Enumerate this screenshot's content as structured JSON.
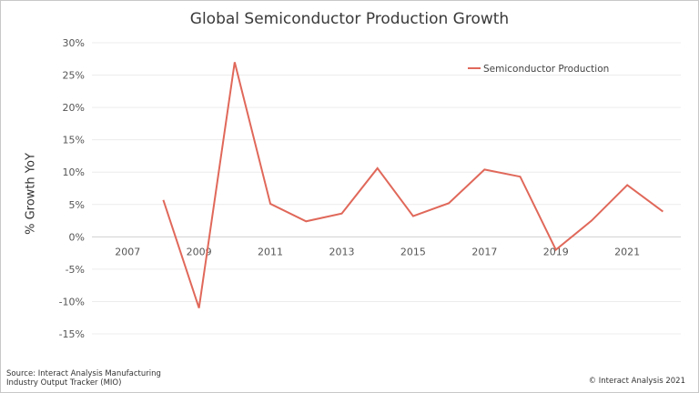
{
  "chart_data": {
    "type": "line",
    "title": "Global Semiconductor Production Growth",
    "ylabel": "% Growth YoY",
    "xlabel": "",
    "x_ticks": [
      2007,
      2009,
      2011,
      2013,
      2015,
      2017,
      2019,
      2021
    ],
    "xlim": [
      2006,
      2022.5
    ],
    "ylim": [
      -15,
      30
    ],
    "y_ticks": [
      -15,
      -10,
      -5,
      0,
      5,
      10,
      15,
      20,
      25,
      30
    ],
    "y_tick_labels": [
      "-15%",
      "-10%",
      "-5%",
      "0%",
      "5%",
      "10%",
      "15%",
      "20%",
      "25%",
      "30%"
    ],
    "grid": true,
    "legend_position": "top-right",
    "series": [
      {
        "name": "Semiconductor Production",
        "color": "#e0685a",
        "x": [
          2008,
          2009,
          2010,
          2011,
          2012,
          2013,
          2014,
          2015,
          2016,
          2017,
          2018,
          2019,
          2020,
          2021,
          2022
        ],
        "values": [
          5.7,
          -11.0,
          27.0,
          5.1,
          2.4,
          3.6,
          10.6,
          3.2,
          5.2,
          10.4,
          9.3,
          -2.0,
          2.5,
          8.0,
          3.9
        ]
      }
    ]
  },
  "footer": {
    "source_line1": "Source: Interact Analysis Manufacturing",
    "source_line2": "Industry Output Tracker (MIO)",
    "copyright": "© Interact Analysis 2021"
  }
}
